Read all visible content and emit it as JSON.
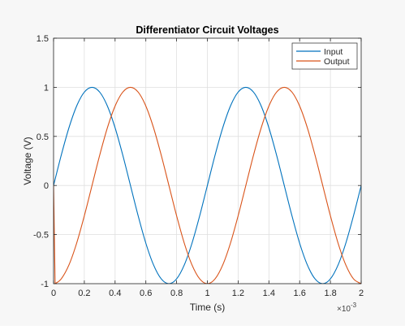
{
  "chart_data": {
    "type": "line",
    "title": "Differentiator Circuit Voltages",
    "xlabel": "Time (s)",
    "ylabel": "Voltage (V)",
    "x_exponent_label": "×10",
    "x_exponent_power": "-3",
    "xlim": [
      0,
      2
    ],
    "ylim": [
      -1,
      1.5
    ],
    "x_scale_factor": 0.001,
    "xticks": [
      "0",
      "0.2",
      "0.4",
      "0.6",
      "0.8",
      "1",
      "1.2",
      "1.4",
      "1.6",
      "1.8",
      "2"
    ],
    "yticks": [
      "-1",
      "-0.5",
      "0",
      "0.5",
      "1",
      "1.5"
    ],
    "grid": true,
    "legend_location": "top-right",
    "series": [
      {
        "name": "Input",
        "color": "#0072BD",
        "x": [
          0,
          0.05,
          0.1,
          0.15,
          0.2,
          0.25,
          0.3,
          0.35,
          0.4,
          0.45,
          0.5,
          0.55,
          0.6,
          0.65,
          0.7,
          0.75,
          0.8,
          0.85,
          0.9,
          0.95,
          1.0,
          1.05,
          1.1,
          1.15,
          1.2,
          1.25,
          1.3,
          1.35,
          1.4,
          1.45,
          1.5,
          1.55,
          1.6,
          1.65,
          1.7,
          1.75,
          1.8,
          1.85,
          1.9,
          1.95,
          2.0
        ],
        "y": [
          0,
          0.309,
          0.588,
          0.809,
          0.951,
          1.0,
          0.951,
          0.809,
          0.588,
          0.309,
          0,
          -0.309,
          -0.588,
          -0.809,
          -0.951,
          -1.0,
          -0.951,
          -0.809,
          -0.588,
          -0.309,
          0,
          0.309,
          0.588,
          0.809,
          0.951,
          1.0,
          0.951,
          0.809,
          0.588,
          0.309,
          0,
          -0.309,
          -0.588,
          -0.809,
          -0.951,
          -1.0,
          -0.951,
          -0.809,
          -0.588,
          -0.309,
          0
        ]
      },
      {
        "name": "Output",
        "color": "#D95319",
        "x": [
          0,
          0.01,
          0.05,
          0.1,
          0.15,
          0.2,
          0.25,
          0.3,
          0.35,
          0.4,
          0.45,
          0.5,
          0.55,
          0.6,
          0.65,
          0.7,
          0.75,
          0.8,
          0.85,
          0.9,
          0.95,
          1.0,
          1.05,
          1.1,
          1.15,
          1.2,
          1.25,
          1.3,
          1.35,
          1.4,
          1.45,
          1.5,
          1.55,
          1.6,
          1.65,
          1.7,
          1.75,
          1.8,
          1.85,
          1.9,
          1.95,
          2.0
        ],
        "y": [
          0,
          -1.0,
          -0.951,
          -0.809,
          -0.588,
          -0.309,
          0,
          0.309,
          0.588,
          0.809,
          0.951,
          1.0,
          0.951,
          0.809,
          0.588,
          0.309,
          0,
          -0.309,
          -0.588,
          -0.809,
          -0.951,
          -1.0,
          -0.951,
          -0.809,
          -0.588,
          -0.309,
          0,
          0.309,
          0.588,
          0.809,
          0.951,
          1.0,
          0.951,
          0.809,
          0.588,
          0.309,
          0,
          -0.309,
          -0.588,
          -0.809,
          -0.951,
          -1.0
        ]
      }
    ]
  }
}
